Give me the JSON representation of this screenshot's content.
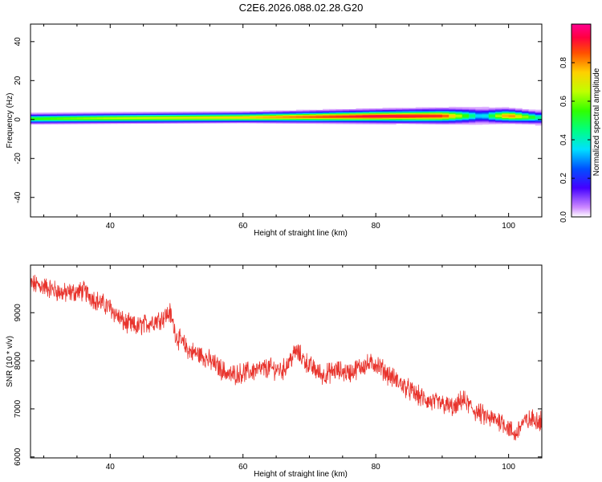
{
  "title": "C2E6.2026.088.02.28.G20",
  "colors": {
    "snr_line": "#e8332c",
    "axis": "#000000",
    "background": "#ffffff"
  },
  "chart_data": [
    {
      "type": "heatmap",
      "xlabel": "Height of straight line (km)",
      "ylabel": "Frequency (Hz)",
      "xlim": [
        28,
        105
      ],
      "ylim": [
        -50,
        49
      ],
      "xticks": [
        40,
        60,
        80,
        100
      ],
      "yticks": [
        -40,
        -20,
        0,
        20,
        40
      ],
      "colorbar": {
        "label": "Normalized spectral amplitude",
        "range": [
          0,
          1
        ],
        "ticks": [
          "0.0",
          "0.2",
          "0.4",
          "0.6",
          "0.8"
        ],
        "colormap": "rainbow (magenta-blue-cyan-green-yellow-red-pink)"
      },
      "band": {
        "description": "narrow band of high amplitude near 0 Hz, slowly drifting from about 0 Hz at 28 km to about +2 Hz near 100 km",
        "center_hz": [
          [
            28,
            0.5
          ],
          [
            40,
            0.8
          ],
          [
            60,
            1.2
          ],
          [
            80,
            1.8
          ],
          [
            95,
            2.0
          ],
          [
            100,
            2.0
          ],
          [
            105,
            1.0
          ]
        ],
        "peak_amplitude": [
          [
            28,
            0.55
          ],
          [
            40,
            0.65
          ],
          [
            60,
            0.75
          ],
          [
            70,
            0.85
          ],
          [
            80,
            0.95
          ],
          [
            90,
            0.9
          ],
          [
            96,
            0.3
          ],
          [
            100,
            0.85
          ],
          [
            105,
            0.4
          ]
        ],
        "halfwidth_hz": [
          [
            28,
            4
          ],
          [
            60,
            4
          ],
          [
            95,
            6
          ],
          [
            105,
            5
          ]
        ]
      }
    },
    {
      "type": "line",
      "xlabel": "Height of straight line (km)",
      "ylabel": "SNR (10 * v/v)",
      "xlim": [
        28,
        105
      ],
      "ylim": [
        5980,
        9990
      ],
      "xticks": [
        40,
        60,
        80,
        100
      ],
      "yticks": [
        6000,
        7000,
        8000,
        9000
      ],
      "series": [
        {
          "trend": [
            [
              28,
              9600
            ],
            [
              30,
              9550
            ],
            [
              33,
              9400
            ],
            [
              36,
              9450
            ],
            [
              38,
              9250
            ],
            [
              40,
              9100
            ],
            [
              42,
              8800
            ],
            [
              44,
              8700
            ],
            [
              46,
              8800
            ],
            [
              48,
              8900
            ],
            [
              49,
              9000
            ],
            [
              50,
              8500
            ],
            [
              52,
              8200
            ],
            [
              54,
              8100
            ],
            [
              56,
              7900
            ],
            [
              58,
              7700
            ],
            [
              60,
              7750
            ],
            [
              62,
              7800
            ],
            [
              64,
              7850
            ],
            [
              66,
              7800
            ],
            [
              67,
              8000
            ],
            [
              68,
              8200
            ],
            [
              70,
              7900
            ],
            [
              72,
              7700
            ],
            [
              74,
              7800
            ],
            [
              76,
              7750
            ],
            [
              78,
              7900
            ],
            [
              80,
              7950
            ],
            [
              82,
              7700
            ],
            [
              84,
              7500
            ],
            [
              86,
              7300
            ],
            [
              88,
              7150
            ],
            [
              90,
              7100
            ],
            [
              92,
              7000
            ],
            [
              93,
              7200
            ],
            [
              95,
              6950
            ],
            [
              97,
              6800
            ],
            [
              99,
              6750
            ],
            [
              101,
              6450
            ],
            [
              102,
              6700
            ],
            [
              104,
              6800
            ],
            [
              105,
              6750
            ]
          ],
          "noise_amplitude": 180
        }
      ]
    }
  ]
}
